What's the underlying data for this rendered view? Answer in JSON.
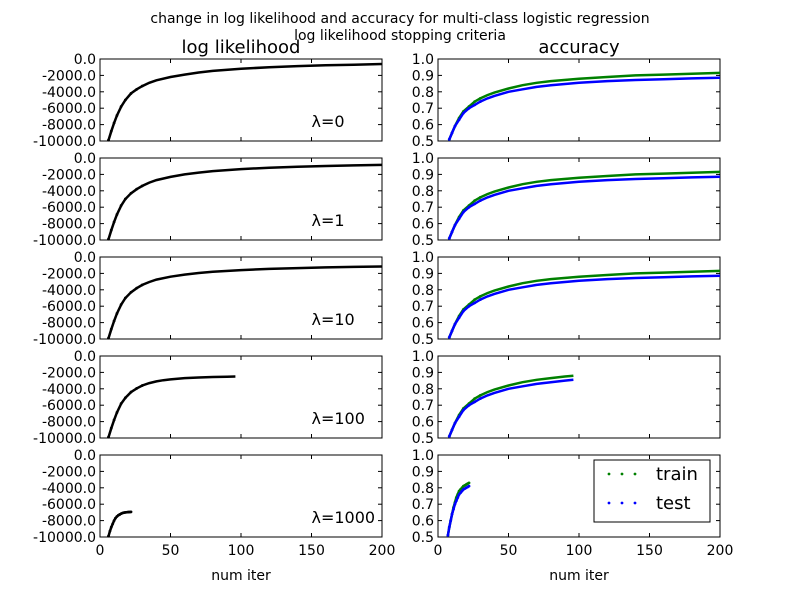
{
  "figure": {
    "title_line1": "change in log likelihood and accuracy for multi-class logistic regression",
    "title_line2": "log likelihood stopping criteria"
  },
  "chart_data": [
    {
      "type": "scatter",
      "column": "log likelihood",
      "title": "log likelihood",
      "lambda_label": "λ=0",
      "xlim": [
        0,
        200
      ],
      "ylim": [
        -10000,
        0
      ],
      "xticks": [],
      "yticks": [
        0,
        -2000,
        -4000,
        -6000,
        -8000,
        -10000
      ],
      "series": [
        {
          "color": "#000000",
          "x": [
            6,
            8,
            10,
            12,
            15,
            18,
            22,
            26,
            30,
            35,
            40,
            50,
            60,
            70,
            80,
            100,
            120,
            140,
            160,
            180,
            200
          ],
          "y": [
            -9900,
            -8800,
            -7800,
            -6900,
            -5800,
            -5000,
            -4200,
            -3700,
            -3300,
            -2900,
            -2600,
            -2200,
            -1900,
            -1650,
            -1450,
            -1200,
            -1000,
            -870,
            -770,
            -690,
            -610
          ]
        }
      ]
    },
    {
      "type": "scatter",
      "column": "accuracy",
      "title": "accuracy",
      "xlim": [
        0,
        200
      ],
      "ylim": [
        0.5,
        1.0
      ],
      "xticks": [],
      "yticks": [
        1.0,
        0.9,
        0.8,
        0.7,
        0.6,
        0.5
      ],
      "series": [
        {
          "name": "train",
          "color": "#008000",
          "x": [
            8,
            10,
            12,
            15,
            18,
            22,
            26,
            30,
            35,
            40,
            50,
            60,
            70,
            80,
            100,
            120,
            140,
            160,
            180,
            200
          ],
          "y": [
            0.51,
            0.55,
            0.59,
            0.64,
            0.68,
            0.71,
            0.74,
            0.76,
            0.78,
            0.795,
            0.82,
            0.84,
            0.855,
            0.865,
            0.88,
            0.89,
            0.9,
            0.905,
            0.91,
            0.915
          ]
        },
        {
          "name": "test",
          "color": "#0000ff",
          "x": [
            8,
            10,
            12,
            15,
            18,
            22,
            26,
            30,
            35,
            40,
            50,
            60,
            70,
            80,
            100,
            120,
            140,
            160,
            180,
            200
          ],
          "y": [
            0.51,
            0.55,
            0.59,
            0.63,
            0.67,
            0.7,
            0.72,
            0.74,
            0.76,
            0.775,
            0.8,
            0.815,
            0.83,
            0.84,
            0.855,
            0.865,
            0.872,
            0.877,
            0.882,
            0.886
          ]
        }
      ]
    },
    {
      "type": "scatter",
      "column": "log likelihood",
      "lambda_label": "λ=1",
      "xlim": [
        0,
        200
      ],
      "ylim": [
        -10000,
        0
      ],
      "xticks": [],
      "yticks": [
        0,
        -2000,
        -4000,
        -6000,
        -8000,
        -10000
      ],
      "series": [
        {
          "color": "#000000",
          "x": [
            6,
            8,
            10,
            12,
            15,
            18,
            22,
            26,
            30,
            35,
            40,
            50,
            60,
            70,
            80,
            100,
            120,
            140,
            160,
            180,
            200
          ],
          "y": [
            -9900,
            -8800,
            -7800,
            -6900,
            -5800,
            -5000,
            -4300,
            -3800,
            -3400,
            -3000,
            -2700,
            -2300,
            -2000,
            -1780,
            -1600,
            -1350,
            -1180,
            -1060,
            -970,
            -900,
            -840
          ]
        }
      ]
    },
    {
      "type": "scatter",
      "column": "accuracy",
      "xlim": [
        0,
        200
      ],
      "ylim": [
        0.5,
        1.0
      ],
      "xticks": [],
      "yticks": [
        1.0,
        0.9,
        0.8,
        0.7,
        0.6,
        0.5
      ],
      "series": [
        {
          "color": "#008000",
          "x": [
            8,
            10,
            12,
            15,
            18,
            22,
            26,
            30,
            35,
            40,
            50,
            60,
            70,
            80,
            100,
            120,
            140,
            160,
            180,
            200
          ],
          "y": [
            0.51,
            0.55,
            0.59,
            0.64,
            0.68,
            0.71,
            0.74,
            0.76,
            0.78,
            0.795,
            0.82,
            0.84,
            0.855,
            0.865,
            0.88,
            0.89,
            0.9,
            0.905,
            0.91,
            0.915
          ]
        },
        {
          "color": "#0000ff",
          "x": [
            8,
            10,
            12,
            15,
            18,
            22,
            26,
            30,
            35,
            40,
            50,
            60,
            70,
            80,
            100,
            120,
            140,
            160,
            180,
            200
          ],
          "y": [
            0.51,
            0.55,
            0.59,
            0.63,
            0.67,
            0.7,
            0.72,
            0.74,
            0.76,
            0.775,
            0.8,
            0.815,
            0.83,
            0.84,
            0.855,
            0.865,
            0.872,
            0.877,
            0.882,
            0.886
          ]
        }
      ]
    },
    {
      "type": "scatter",
      "column": "log likelihood",
      "lambda_label": "λ=10",
      "xlim": [
        0,
        200
      ],
      "ylim": [
        -10000,
        0
      ],
      "xticks": [],
      "yticks": [
        0,
        -2000,
        -4000,
        -6000,
        -8000,
        -10000
      ],
      "series": [
        {
          "color": "#000000",
          "x": [
            6,
            8,
            10,
            12,
            15,
            18,
            22,
            26,
            30,
            35,
            40,
            50,
            60,
            70,
            80,
            100,
            120,
            140,
            160,
            180,
            200
          ],
          "y": [
            -9900,
            -8800,
            -7800,
            -6900,
            -5800,
            -5000,
            -4300,
            -3800,
            -3400,
            -3050,
            -2750,
            -2400,
            -2150,
            -1950,
            -1800,
            -1600,
            -1450,
            -1350,
            -1270,
            -1210,
            -1160
          ]
        }
      ]
    },
    {
      "type": "scatter",
      "column": "accuracy",
      "xlim": [
        0,
        200
      ],
      "ylim": [
        0.5,
        1.0
      ],
      "xticks": [],
      "yticks": [
        1.0,
        0.9,
        0.8,
        0.7,
        0.6,
        0.5
      ],
      "series": [
        {
          "color": "#008000",
          "x": [
            8,
            10,
            12,
            15,
            18,
            22,
            26,
            30,
            35,
            40,
            50,
            60,
            70,
            80,
            100,
            120,
            140,
            160,
            180,
            200
          ],
          "y": [
            0.51,
            0.55,
            0.59,
            0.64,
            0.68,
            0.71,
            0.74,
            0.76,
            0.78,
            0.795,
            0.82,
            0.84,
            0.855,
            0.865,
            0.88,
            0.89,
            0.9,
            0.905,
            0.91,
            0.915
          ]
        },
        {
          "color": "#0000ff",
          "x": [
            8,
            10,
            12,
            15,
            18,
            22,
            26,
            30,
            35,
            40,
            50,
            60,
            70,
            80,
            100,
            120,
            140,
            160,
            180,
            200
          ],
          "y": [
            0.51,
            0.55,
            0.59,
            0.63,
            0.67,
            0.7,
            0.72,
            0.74,
            0.76,
            0.775,
            0.8,
            0.815,
            0.83,
            0.84,
            0.855,
            0.865,
            0.872,
            0.877,
            0.882,
            0.886
          ]
        }
      ]
    },
    {
      "type": "scatter",
      "column": "log likelihood",
      "lambda_label": "λ=100",
      "xlim": [
        0,
        200
      ],
      "ylim": [
        -10000,
        0
      ],
      "xticks": [],
      "yticks": [
        0,
        -2000,
        -4000,
        -6000,
        -8000,
        -10000
      ],
      "series": [
        {
          "color": "#000000",
          "x": [
            6,
            8,
            10,
            12,
            15,
            18,
            22,
            26,
            30,
            35,
            40,
            45,
            50,
            55,
            60,
            70,
            80,
            90,
            96
          ],
          "y": [
            -9900,
            -8800,
            -7800,
            -6900,
            -5800,
            -5100,
            -4400,
            -3950,
            -3600,
            -3300,
            -3100,
            -2950,
            -2850,
            -2770,
            -2700,
            -2620,
            -2560,
            -2520,
            -2500
          ]
        }
      ]
    },
    {
      "type": "scatter",
      "column": "accuracy",
      "xlim": [
        0,
        200
      ],
      "ylim": [
        0.5,
        1.0
      ],
      "xticks": [],
      "yticks": [
        1.0,
        0.9,
        0.8,
        0.7,
        0.6,
        0.5
      ],
      "series": [
        {
          "color": "#008000",
          "x": [
            8,
            10,
            12,
            15,
            18,
            22,
            26,
            30,
            35,
            40,
            50,
            60,
            70,
            80,
            90,
            96
          ],
          "y": [
            0.51,
            0.55,
            0.59,
            0.64,
            0.68,
            0.71,
            0.74,
            0.76,
            0.78,
            0.795,
            0.82,
            0.84,
            0.855,
            0.865,
            0.875,
            0.88
          ]
        },
        {
          "color": "#0000ff",
          "x": [
            8,
            10,
            12,
            15,
            18,
            22,
            26,
            30,
            35,
            40,
            50,
            60,
            70,
            80,
            90,
            96
          ],
          "y": [
            0.51,
            0.55,
            0.59,
            0.63,
            0.67,
            0.7,
            0.72,
            0.74,
            0.76,
            0.775,
            0.8,
            0.815,
            0.83,
            0.84,
            0.85,
            0.855
          ]
        }
      ]
    },
    {
      "type": "scatter",
      "column": "log likelihood",
      "lambda_label": "λ=1000",
      "xlabel": "num iter",
      "xlim": [
        0,
        200
      ],
      "ylim": [
        -10000,
        0
      ],
      "xticks": [
        0,
        50,
        100,
        150,
        200
      ],
      "yticks": [
        0,
        -2000,
        -4000,
        -6000,
        -8000,
        -10000
      ],
      "series": [
        {
          "color": "#000000",
          "x": [
            6,
            7,
            8,
            9,
            10,
            11,
            12,
            13,
            14,
            15,
            16,
            17,
            18,
            19,
            20,
            21,
            22
          ],
          "y": [
            -9900,
            -9300,
            -8800,
            -8400,
            -8000,
            -7700,
            -7500,
            -7350,
            -7250,
            -7150,
            -7080,
            -7030,
            -7000,
            -6980,
            -6960,
            -6950,
            -6940
          ]
        }
      ]
    },
    {
      "type": "scatter",
      "column": "accuracy",
      "xlabel": "num iter",
      "xlim": [
        0,
        200
      ],
      "ylim": [
        0.5,
        1.0
      ],
      "xticks": [
        0,
        50,
        100,
        150,
        200
      ],
      "yticks": [
        1.0,
        0.9,
        0.8,
        0.7,
        0.6,
        0.5
      ],
      "legend": {
        "placement": "right",
        "entries": [
          "train",
          "test"
        ]
      },
      "series": [
        {
          "name": "train",
          "color": "#008000",
          "x": [
            7,
            8,
            9,
            10,
            11,
            12,
            13,
            14,
            15,
            16,
            17,
            18,
            19,
            20,
            21,
            22
          ],
          "y": [
            0.51,
            0.56,
            0.6,
            0.64,
            0.68,
            0.71,
            0.74,
            0.76,
            0.78,
            0.79,
            0.8,
            0.81,
            0.815,
            0.82,
            0.825,
            0.83
          ]
        },
        {
          "name": "test",
          "color": "#0000ff",
          "x": [
            7,
            8,
            9,
            10,
            11,
            12,
            13,
            14,
            15,
            16,
            17,
            18,
            19,
            20,
            21,
            22
          ],
          "y": [
            0.51,
            0.56,
            0.6,
            0.64,
            0.67,
            0.7,
            0.72,
            0.74,
            0.76,
            0.77,
            0.78,
            0.79,
            0.795,
            0.8,
            0.805,
            0.81
          ]
        }
      ]
    }
  ]
}
